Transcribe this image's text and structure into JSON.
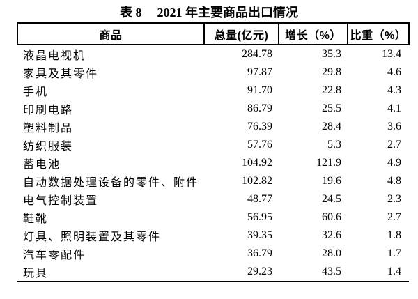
{
  "caption": {
    "label": "表 8",
    "title": "2021 年主要商品出口情况"
  },
  "table": {
    "columns": [
      "商品",
      "总量(亿元)",
      "增长（%）",
      "比重（%）"
    ],
    "rows": [
      {
        "name": "液晶电视机",
        "total": "284.78",
        "growth": "35.3",
        "share": "13.4"
      },
      {
        "name": "家具及其零件",
        "total": "97.87",
        "growth": "29.8",
        "share": "4.6"
      },
      {
        "name": "手机",
        "total": "91.70",
        "growth": "22.8",
        "share": "4.3"
      },
      {
        "name": "印刷电路",
        "total": "86.79",
        "growth": "25.5",
        "share": "4.1"
      },
      {
        "name": "塑料制品",
        "total": "76.39",
        "growth": "28.4",
        "share": "3.6"
      },
      {
        "name": "纺织服装",
        "total": "57.76",
        "growth": "5.3",
        "share": "2.7"
      },
      {
        "name": "蓄电池",
        "total": "104.92",
        "growth": "121.9",
        "share": "4.9"
      },
      {
        "name": "自动数据处理设备的零件、附件",
        "total": "102.82",
        "growth": "19.6",
        "share": "4.8"
      },
      {
        "name": "电气控制装置",
        "total": "48.77",
        "growth": "24.5",
        "share": "2.3"
      },
      {
        "name": "鞋靴",
        "total": "56.95",
        "growth": "60.6",
        "share": "2.7"
      },
      {
        "name": "灯具、照明装置及其零件",
        "total": "39.35",
        "growth": "32.6",
        "share": "1.8"
      },
      {
        "name": "汽车零配件",
        "total": "36.79",
        "growth": "28.0",
        "share": "1.7"
      },
      {
        "name": "玩具",
        "total": "29.23",
        "growth": "43.5",
        "share": "1.4"
      }
    ]
  },
  "chart_data": {
    "type": "table",
    "title": "表 8 2021 年主要商品出口情况",
    "columns": [
      "商品",
      "总量(亿元)",
      "增长（%）",
      "比重（%）"
    ],
    "rows": [
      [
        "液晶电视机",
        284.78,
        35.3,
        13.4
      ],
      [
        "家具及其零件",
        97.87,
        29.8,
        4.6
      ],
      [
        "手机",
        91.7,
        22.8,
        4.3
      ],
      [
        "印刷电路",
        86.79,
        25.5,
        4.1
      ],
      [
        "塑料制品",
        76.39,
        28.4,
        3.6
      ],
      [
        "纺织服装",
        57.76,
        5.3,
        2.7
      ],
      [
        "蓄电池",
        104.92,
        121.9,
        4.9
      ],
      [
        "自动数据处理设备的零件、附件",
        102.82,
        19.6,
        4.8
      ],
      [
        "电气控制装置",
        48.77,
        24.5,
        2.3
      ],
      [
        "鞋靴",
        56.95,
        60.6,
        2.7
      ],
      [
        "灯具、照明装置及其零件",
        39.35,
        32.6,
        1.8
      ],
      [
        "汽车零配件",
        36.79,
        28.0,
        1.7
      ],
      [
        "玩具",
        29.23,
        43.5,
        1.4
      ]
    ]
  },
  "colors": {
    "text": "#000000",
    "border": "#000000",
    "background": "#ffffff"
  }
}
